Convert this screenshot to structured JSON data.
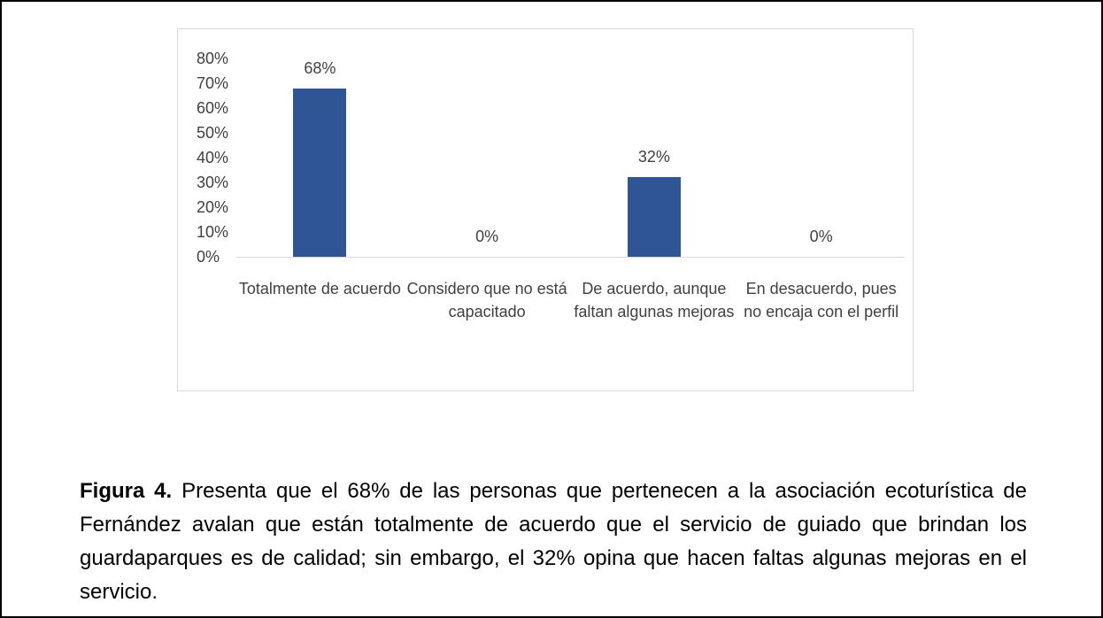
{
  "chart_data": {
    "type": "bar",
    "categories": [
      "Totalmente de acuerdo",
      "Considero que no está capacitado",
      "De acuerdo, aunque faltan algunas mejoras",
      "En desacuerdo, pues no encaja con el perfil"
    ],
    "values": [
      68,
      0,
      32,
      0
    ],
    "value_labels": [
      "68%",
      "0%",
      "32%",
      "0%"
    ],
    "color": "#2f5597",
    "ylim": [
      0,
      80
    ],
    "yticks": [
      {
        "value": 0,
        "label": "0%"
      },
      {
        "value": 10,
        "label": "10%"
      },
      {
        "value": 20,
        "label": "20%"
      },
      {
        "value": 30,
        "label": "30%"
      },
      {
        "value": 40,
        "label": "40%"
      },
      {
        "value": 50,
        "label": "50%"
      },
      {
        "value": 60,
        "label": "60%"
      },
      {
        "value": 70,
        "label": "70%"
      },
      {
        "value": 80,
        "label": "80%"
      }
    ],
    "grid": false
  },
  "caption": {
    "label": "Figura 4.",
    "text": "Presenta que el 68% de las personas que pertenecen a la asociación ecoturística de Fernández avalan que están totalmente de acuerdo que el servicio de guiado que brindan los guardaparques es de calidad; sin embargo, el 32% opina que hacen faltas algunas mejoras en el servicio."
  }
}
